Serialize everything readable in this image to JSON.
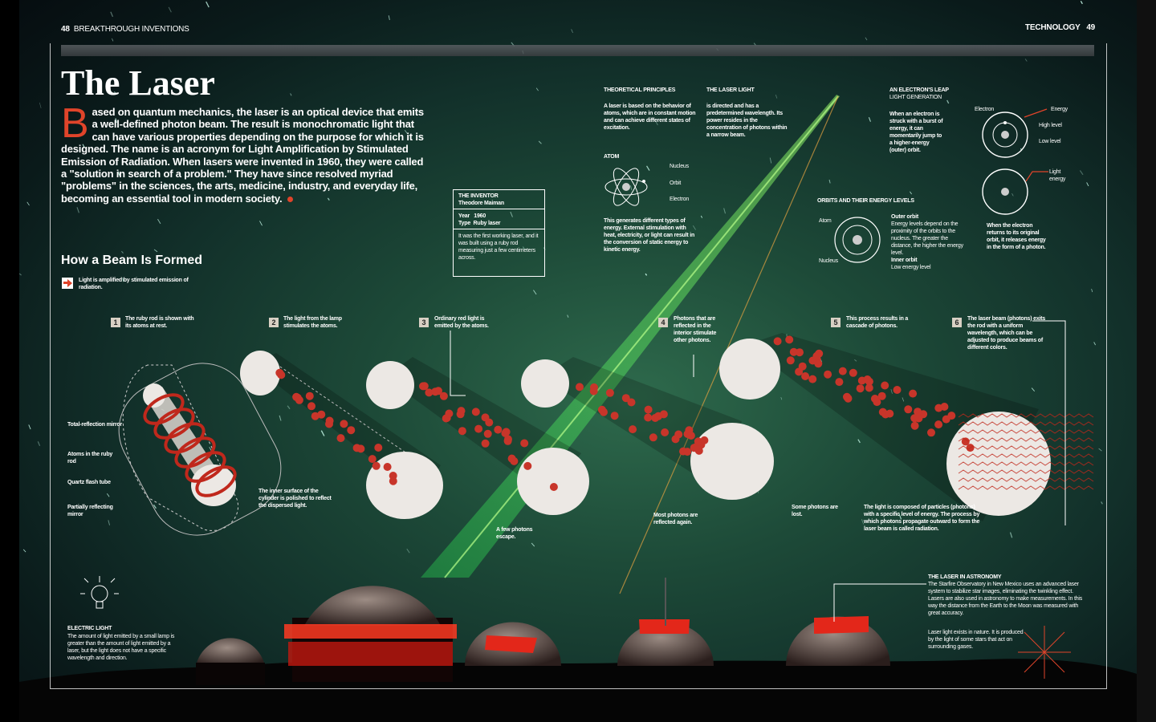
{
  "header": {
    "left_page_number": "48",
    "left_section": "BREAKTHROUGH INVENTIONS",
    "right_section": "TECHNOLOGY",
    "right_page_number": "49"
  },
  "article": {
    "title": "The Laser",
    "dropcap": "B",
    "intro": "ased on quantum mechanics, the laser is an optical device that emits a well-defined photon beam. The result is monochromatic light that can have various properties depending on the purpose for which it is designed. The name is an acronym for Light Amplification by Stimulated Emission of Radiation. When lasers were invented in 1960, they were called a \"solution in search of a problem.\" They have since resolved myriad \"problems\" in the sciences, the arts, medicine, industry, and everyday life, becoming an essential tool in modern society."
  },
  "inventor": {
    "heading": "THE INVENTOR",
    "name": "Theodore Maiman",
    "year_label": "Year",
    "year": "1960",
    "type_label": "Type",
    "type": "Ruby laser",
    "text": "It was the first working laser, and it was built using a ruby rod measuring just a few centimeters across."
  },
  "principles": {
    "heading": "THEORETICAL PRINCIPLES",
    "text": "A laser is based on the behavior of atoms, which are in constant motion and can achieve different states of excitation.",
    "atom_label": "ATOM",
    "nucleus": "Nucleus",
    "orbit": "Orbit",
    "electron": "Electron",
    "text2": "This generates different types of energy. External stimulation with heat, electricity, or light can result in the conversion of static energy to kinetic energy."
  },
  "laser_light": {
    "heading": "THE LASER LIGHT",
    "text": "is directed and has a predetermined wavelength. Its power resides in the concentration of photons within a narrow beam."
  },
  "leap": {
    "heading": "AN ELECTRON'S LEAP",
    "subheading": "LIGHT GENERATION",
    "text": "When an electron is struck with a burst of energy, it can momentarily jump to a higher-energy (outer) orbit.",
    "electron": "Electron",
    "energy": "Energy",
    "high": "High level",
    "low": "Low level",
    "light_energy": "Light energy",
    "return_text": "When the electron returns to its original orbit, it releases energy in the form of a photon."
  },
  "orbits": {
    "heading": "ORBITS AND THEIR ENERGY LEVELS",
    "atom": "Atom",
    "nucleus": "Nucleus",
    "outer": "Outer orbit",
    "outer_text": "Energy levels depend on the proximity of the orbits to the nucleus. The greater the distance, the higher the energy level.",
    "inner": "Inner orbit",
    "inner_text": "Low energy level"
  },
  "beam": {
    "heading": "How a Beam Is Formed",
    "legend": "Light is amplified by stimulated emission of radiation.",
    "steps": [
      {
        "n": "1",
        "text": "The ruby rod is shown with its atoms at rest."
      },
      {
        "n": "2",
        "text": "The light from the lamp stimulates the atoms."
      },
      {
        "n": "3",
        "text": "Ordinary red light is emitted by the atoms."
      },
      {
        "n": "4",
        "text": "Photons that are reflected in the interior stimulate other photons."
      },
      {
        "n": "5",
        "text": "This process results in a cascade of photons."
      },
      {
        "n": "6",
        "text": "The laser beam (photons) exits the rod with a uniform wavelength, which can be adjusted to produce beams of different colors."
      }
    ],
    "labels": {
      "mirror": "Total-reflection mirror",
      "atoms": "Atoms in the ruby rod",
      "quartz": "Quartz flash tube",
      "partial": "Partially reflecting mirror",
      "inner_surface": "The inner surface of the cylinder is polished to reflect the dispersed light.",
      "few_escape": "A few photons escape.",
      "most_reflected": "Most photons are reflected again.",
      "some_lost": "Some photons are lost.",
      "composed": "The light is composed of particles (photons) with a specific level of energy. The process by which photons propagate outward to form the laser beam is called radiation."
    }
  },
  "electric": {
    "heading": "ELECTRIC LIGHT",
    "text": "The amount of light emitted by a small lamp is greater than the amount of light emitted by a laser, but the light does not have a specific wavelength and direction."
  },
  "astronomy": {
    "heading": "THE LASER IN ASTRONOMY",
    "text": "The Starfire Observatory in New Mexico uses an advanced laser system to stabilize star images, eliminating the twinkling effect. Lasers are also used in astronomy to make measurements. In this way the distance from the Earth to the Moon was measured with great accuracy.",
    "text2": "Laser light exists in nature. It is produced by the light of some stars that act on surrounding gases."
  },
  "colors": {
    "accent": "#e0442a",
    "photon": "#c8352a",
    "beam": "#7dff6a",
    "rod": "#e6e1dc"
  }
}
